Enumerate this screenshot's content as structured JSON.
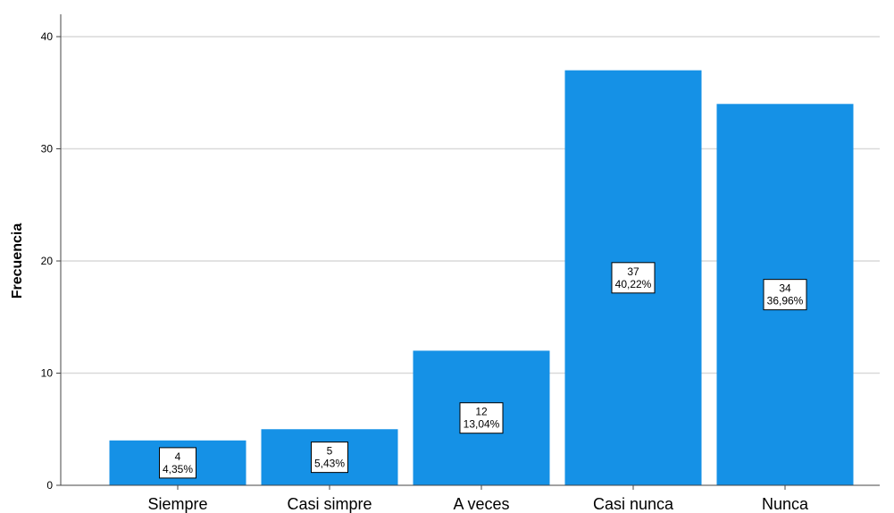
{
  "chart_data": {
    "type": "bar",
    "title": "",
    "xlabel": "",
    "ylabel": "Frecuencia",
    "categories": [
      "Siempre",
      "Casi simpre",
      "A veces",
      "Casi nunca",
      "Nunca"
    ],
    "values": [
      4,
      5,
      12,
      37,
      34
    ],
    "percent_labels": [
      "4,35%",
      "5,43%",
      "13,04%",
      "40,22%",
      "36,96%"
    ],
    "ylim": [
      0,
      42
    ],
    "yticks": [
      0,
      10,
      20,
      30,
      40
    ],
    "grid": true,
    "legend": "none",
    "bar_color": "#1591e6",
    "grid_color": "#d9d9d9",
    "axis_color": "#444444"
  }
}
